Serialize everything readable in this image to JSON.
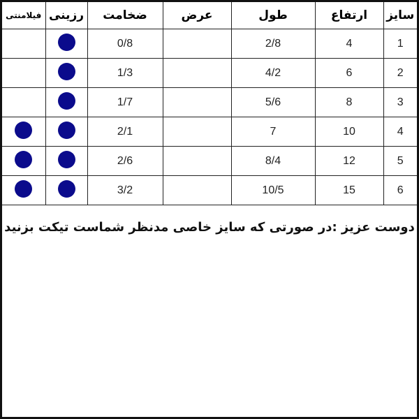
{
  "headers": {
    "size": "سایز",
    "height": "ارتفاع",
    "length": "طول",
    "width": "عرض",
    "thickness": "ضخامت",
    "resin": "رزینی",
    "filament": "فیلامنتی"
  },
  "rows": [
    {
      "size": "1",
      "height": "4",
      "length": "2/8",
      "width": "",
      "thickness": "0/8",
      "resin": true,
      "filament": false
    },
    {
      "size": "2",
      "height": "6",
      "length": "4/2",
      "width": "",
      "thickness": "1/3",
      "resin": true,
      "filament": false
    },
    {
      "size": "3",
      "height": "8",
      "length": "5/6",
      "width": "",
      "thickness": "1/7",
      "resin": true,
      "filament": false
    },
    {
      "size": "4",
      "height": "10",
      "length": "7",
      "width": "",
      "thickness": "2/1",
      "resin": true,
      "filament": true
    },
    {
      "size": "5",
      "height": "12",
      "length": "8/4",
      "width": "",
      "thickness": "2/6",
      "resin": true,
      "filament": true
    },
    {
      "size": "6",
      "height": "15",
      "length": "10/5",
      "width": "",
      "thickness": "3/2",
      "resin": true,
      "filament": true
    }
  ],
  "note": "دوست عزیز :در صورتی که سایز خاصی مدنظر شماست تیکت بزنید",
  "colors": {
    "dot": "#0b0b8c"
  }
}
